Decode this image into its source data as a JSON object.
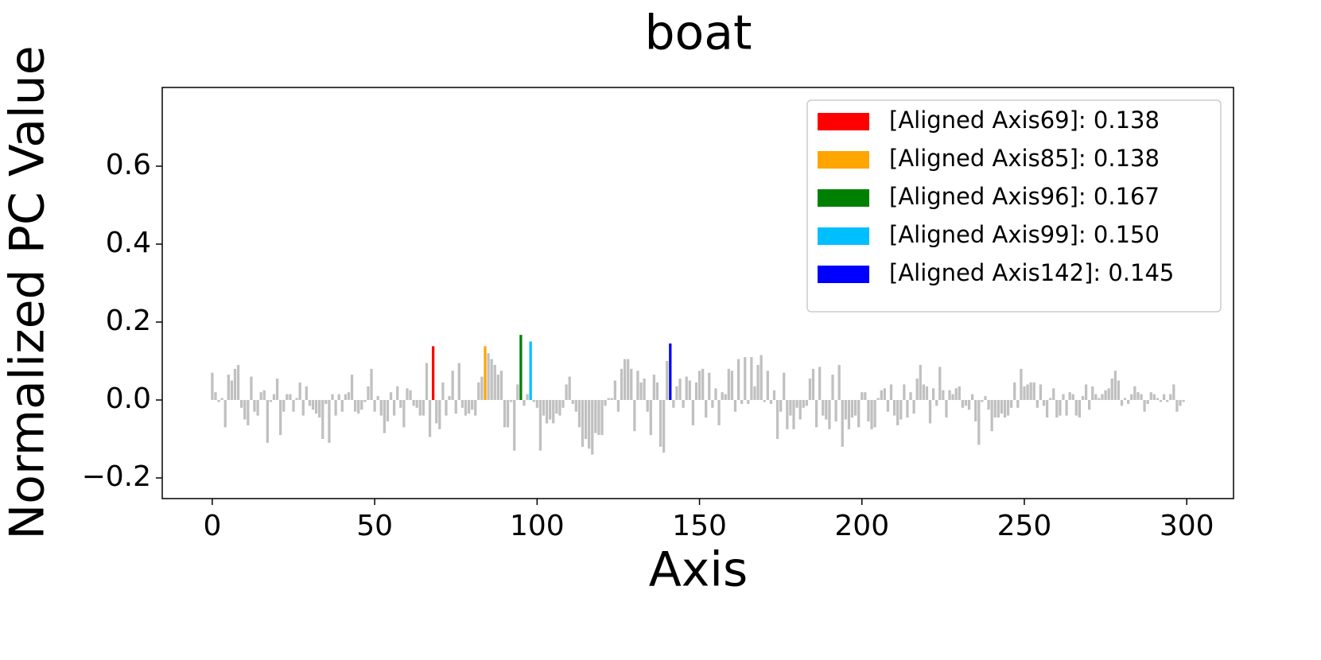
{
  "chart_data": {
    "type": "bar",
    "title": "boat",
    "xlabel": "Axis",
    "ylabel": "Normalized PC Value",
    "xlim": [
      -15.4,
      314.4
    ],
    "ylim": [
      -0.253,
      0.802
    ],
    "xticks": [
      0,
      50,
      100,
      150,
      200,
      250,
      300
    ],
    "yticks": [
      {
        "value": -0.2,
        "label": "−0.2"
      },
      {
        "value": 0,
        "label": "0.0"
      },
      0.2,
      0.4,
      0.6
    ],
    "color": "#c0c0c0",
    "legend": "upper right",
    "highlights": [
      {
        "name": "[Aligned Axis69]: 0.138",
        "color": "#ff0000",
        "x": 68
      },
      {
        "name": "[Aligned Axis85]: 0.138",
        "color": "#ffa500",
        "x": 84
      },
      {
        "name": "[Aligned Axis96]: 0.167",
        "color": "#008000",
        "x": 95
      },
      {
        "name": "[Aligned Axis99]: 0.150",
        "color": "#00bfff",
        "x": 98
      },
      {
        "name": "[Aligned Axis142]: 0.145",
        "color": "#0000ff",
        "x": 141
      }
    ],
    "values": [
      0.07,
      0.02,
      -0.005,
      0.005,
      -0.07,
      0.065,
      0.05,
      0.08,
      0.09,
      -0.02,
      -0.05,
      -0.065,
      0.06,
      -0.03,
      -0.04,
      0.02,
      0.025,
      -0.11,
      -0.005,
      0.015,
      0.055,
      -0.09,
      -0.03,
      0.015,
      0.015,
      -0.03,
      0.005,
      0.045,
      -0.04,
      0.035,
      -0.015,
      -0.025,
      -0.035,
      -0.045,
      -0.1,
      -0.01,
      -0.11,
      0.015,
      -0.04,
      0.015,
      -0.03,
      0.015,
      0.02,
      0.065,
      -0.03,
      -0.035,
      -0.025,
      -0.005,
      0.035,
      0.08,
      -0.03,
      0.01,
      -0.04,
      -0.085,
      -0.055,
      0.02,
      -0.04,
      0.035,
      -0.02,
      -0.07,
      0.03,
      0.025,
      -0.015,
      -0.02,
      -0.04,
      -0.04,
      0.095,
      -0.095,
      0.138,
      -0.06,
      -0.075,
      0.045,
      -0.04,
      0.01,
      0.075,
      -0.035,
      0.095,
      -0.02,
      -0.04,
      -0.035,
      -0.025,
      -0.04,
      0.045,
      0.06,
      0.138,
      0.12,
      0.105,
      0.09,
      0.065,
      0.075,
      -0.07,
      -0.07,
      -0.005,
      -0.13,
      0.04,
      0.167,
      -0.015,
      0.015,
      0.15,
      -0.005,
      -0.02,
      -0.13,
      -0.04,
      -0.06,
      -0.05,
      -0.06,
      -0.035,
      -0.04,
      -0.02,
      0.04,
      0.06,
      -0.01,
      -0.03,
      -0.07,
      -0.12,
      -0.1,
      -0.125,
      -0.14,
      -0.085,
      -0.09,
      -0.09,
      -0.015,
      0.005,
      0.005,
      0.05,
      -0.03,
      0.08,
      0.105,
      0.105,
      0.08,
      -0.08,
      0.075,
      0.045,
      0.055,
      -0.03,
      -0.09,
      0.065,
      0.045,
      -0.12,
      -0.135,
      0.1,
      0.145,
      -0.02,
      0.035,
      0.055,
      -0.02,
      0.06,
      0.05,
      -0.065,
      0.045,
      0.075,
      0.08,
      -0.045,
      0.07,
      -0.02,
      0.03,
      -0.065,
      0.02,
      0.015,
      0.08,
      0.075,
      -0.03,
      0.105,
      -0.01,
      0.11,
      -0.01,
      0.11,
      0.035,
      0.09,
      0.115,
      -0.005,
      0.075,
      -0.01,
      0.025,
      -0.1,
      -0.03,
      0.07,
      -0.075,
      -0.04,
      -0.075,
      -0.02,
      -0.05,
      -0.02,
      -0.015,
      0.055,
      0.08,
      -0.07,
      0.085,
      -0.04,
      -0.05,
      -0.075,
      0.065,
      -0.055,
      0.09,
      -0.12,
      -0.05,
      -0.075,
      -0.045,
      -0.04,
      -0.07,
      0.02,
      0.02,
      -0.055,
      -0.075,
      -0.07,
      0.005,
      0.025,
      0.03,
      -0.03,
      0.04,
      -0.04,
      -0.065,
      -0.05,
      0.04,
      -0.045,
      0.02,
      -0.035,
      0.055,
      0.09,
      0.04,
      0.035,
      -0.06,
      0.03,
      -0.015,
      0.085,
      0.025,
      -0.045,
      0.025,
      0.015,
      0.03,
      0.035,
      -0.02,
      -0.015,
      -0.025,
      0.015,
      -0.055,
      -0.115,
      -0.005,
      0.01,
      -0.025,
      -0.08,
      -0.045,
      -0.045,
      -0.035,
      -0.045,
      -0.04,
      -0.02,
      0.045,
      -0.02,
      0.08,
      0.035,
      0.04,
      0.045,
      0.045,
      -0.02,
      0.04,
      -0.015,
      -0.045,
      0.005,
      0.03,
      -0.045,
      -0.04,
      0.015,
      -0.04,
      0.02,
      0.015,
      -0.04,
      -0.045,
      0.01,
      0.04,
      -0.025,
      0.035,
      0.015,
      0.005,
      0.015,
      0.025,
      0.03,
      0.055,
      0.075,
      0.05,
      -0.015,
      0.005,
      -0.01,
      0.015,
      0.035,
      0.02,
      0.015,
      -0.03,
      -0.01,
      0.02,
      0.015,
      0.005,
      -0.005,
      0.015,
      -0.005,
      0.015,
      0.04,
      -0.03,
      -0.015,
      -0.005
    ]
  }
}
